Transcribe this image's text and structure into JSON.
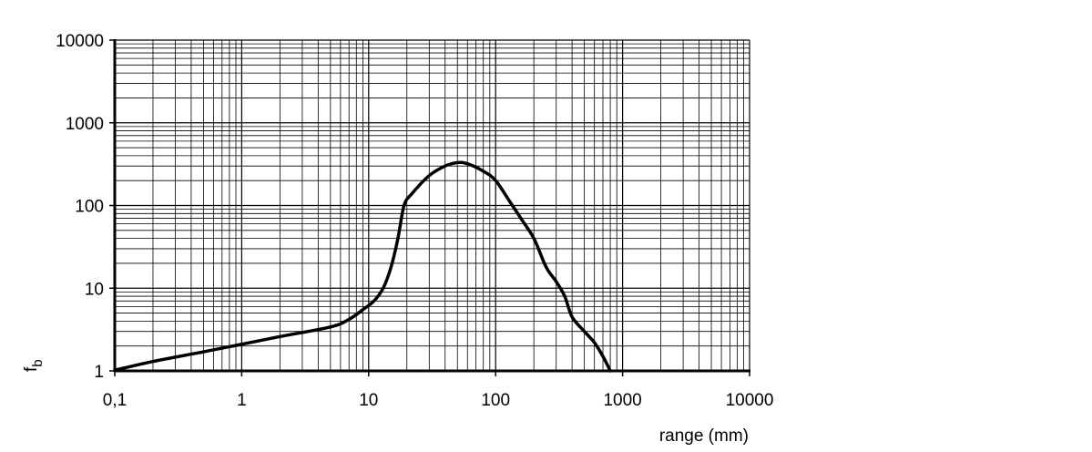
{
  "chart_data": {
    "type": "line",
    "x_scale": "log",
    "y_scale": "log",
    "xlim": [
      0.1,
      10000
    ],
    "ylim": [
      1,
      10000
    ],
    "x_tick_values": [
      0.1,
      1,
      10,
      100,
      1000,
      10000
    ],
    "x_tick_labels": [
      "0,1",
      "1",
      "10",
      "100",
      "1000",
      "10000"
    ],
    "y_tick_values": [
      1,
      10,
      100,
      1000,
      10000
    ],
    "y_tick_labels": [
      "1",
      "10",
      "100",
      "1000",
      "10000"
    ],
    "xlabel": "range (mm)",
    "ylabel_main": "f",
    "ylabel_sub": "b",
    "grid": true,
    "legend": "none",
    "colors": {
      "line": "#000000",
      "grid": "#000000",
      "background": "#ffffff"
    },
    "series": [
      {
        "name": "f_b",
        "points": [
          [
            0.1,
            1.02
          ],
          [
            0.2,
            1.3
          ],
          [
            0.5,
            1.7
          ],
          [
            1,
            2.1
          ],
          [
            2,
            2.6
          ],
          [
            5,
            3.4
          ],
          [
            7,
            4.2
          ],
          [
            9,
            5.5
          ],
          [
            11,
            7.0
          ],
          [
            13,
            10
          ],
          [
            15,
            18
          ],
          [
            17,
            40
          ],
          [
            19,
            100
          ],
          [
            22,
            140
          ],
          [
            30,
            230
          ],
          [
            40,
            300
          ],
          [
            50,
            330
          ],
          [
            60,
            320
          ],
          [
            80,
            260
          ],
          [
            100,
            200
          ],
          [
            130,
            110
          ],
          [
            160,
            68
          ],
          [
            200,
            40
          ],
          [
            250,
            18
          ],
          [
            300,
            12
          ],
          [
            350,
            8.0
          ],
          [
            400,
            4.5
          ],
          [
            500,
            3.0
          ],
          [
            600,
            2.2
          ],
          [
            700,
            1.5
          ],
          [
            800,
            1.0
          ]
        ]
      }
    ]
  }
}
